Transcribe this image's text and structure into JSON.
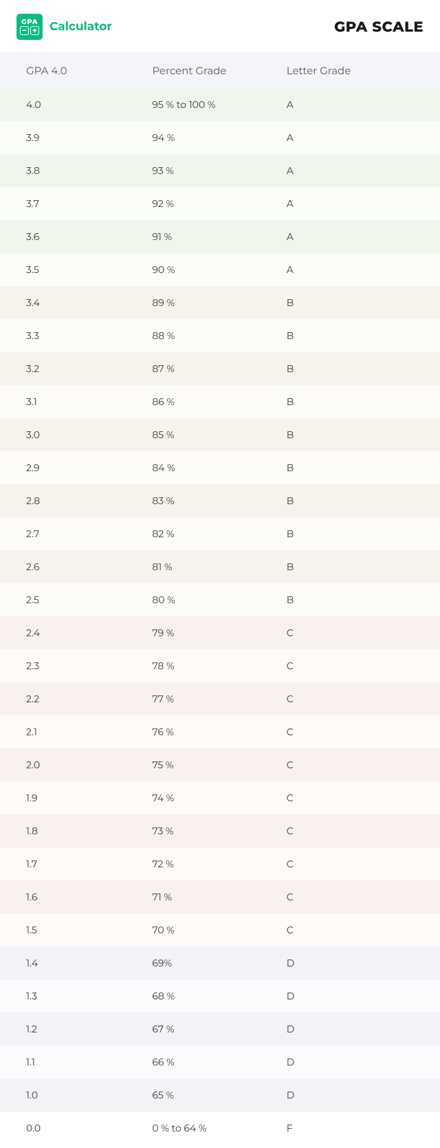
{
  "header": {
    "logo_gpa": "GPA",
    "logo_minus": "−",
    "logo_plus": "+",
    "logo_text": "Calculator",
    "title": "GPA SCALE"
  },
  "table": {
    "columns": [
      "GPA 4.0",
      "Percent Grade",
      "Letter Grade"
    ],
    "header_bg": "#f4f5f9",
    "grade_bands": [
      {
        "letter": "A",
        "tint": "#f1f6ed",
        "base": "#fbfdf9"
      },
      {
        "letter": "B",
        "tint": "#f6f3ed",
        "base": "#fdfcf9"
      },
      {
        "letter": "C",
        "tint": "#f8f1ee",
        "base": "#fefbf9"
      },
      {
        "letter": "D",
        "tint": "#f1f3f6",
        "base": "#f9fbfd"
      },
      {
        "letter": "F",
        "tint": "#ffffff",
        "base": "#ffffff"
      }
    ],
    "rows": [
      {
        "gpa": "4.0",
        "percent": "95 % to 100 %",
        "letter": "A"
      },
      {
        "gpa": "3.9",
        "percent": "94 %",
        "letter": "A"
      },
      {
        "gpa": "3.8",
        "percent": "93 %",
        "letter": "A"
      },
      {
        "gpa": "3.7",
        "percent": "92 %",
        "letter": "A"
      },
      {
        "gpa": "3.6",
        "percent": "91 %",
        "letter": "A"
      },
      {
        "gpa": "3.5",
        "percent": "90 %",
        "letter": "A"
      },
      {
        "gpa": "3.4",
        "percent": "89 %",
        "letter": "B"
      },
      {
        "gpa": "3.3",
        "percent": "88 %",
        "letter": "B"
      },
      {
        "gpa": "3.2",
        "percent": "87 %",
        "letter": "B"
      },
      {
        "gpa": "3.1",
        "percent": "86 %",
        "letter": "B"
      },
      {
        "gpa": "3.0",
        "percent": "85 %",
        "letter": "B"
      },
      {
        "gpa": "2.9",
        "percent": "84 %",
        "letter": "B"
      },
      {
        "gpa": "2.8",
        "percent": "83 %",
        "letter": "B"
      },
      {
        "gpa": "2.7",
        "percent": "82 %",
        "letter": "B"
      },
      {
        "gpa": "2.6",
        "percent": "81 %",
        "letter": "B"
      },
      {
        "gpa": "2.5",
        "percent": "80 %",
        "letter": "B"
      },
      {
        "gpa": "2.4",
        "percent": "79 %",
        "letter": "C"
      },
      {
        "gpa": "2.3",
        "percent": "78 %",
        "letter": "C"
      },
      {
        "gpa": "2.2",
        "percent": "77 %",
        "letter": "C"
      },
      {
        "gpa": "2.1",
        "percent": "76 %",
        "letter": "C"
      },
      {
        "gpa": "2.0",
        "percent": "75 %",
        "letter": "C"
      },
      {
        "gpa": "1.9",
        "percent": "74 %",
        "letter": "C"
      },
      {
        "gpa": "1.8",
        "percent": "73 %",
        "letter": "C"
      },
      {
        "gpa": "1.7",
        "percent": "72 %",
        "letter": "C"
      },
      {
        "gpa": "1.6",
        "percent": "71 %",
        "letter": "C"
      },
      {
        "gpa": "1.5",
        "percent": "70 %",
        "letter": "C"
      },
      {
        "gpa": "1.4",
        "percent": "69%",
        "letter": "D"
      },
      {
        "gpa": "1.3",
        "percent": "68 %",
        "letter": "D"
      },
      {
        "gpa": "1.2",
        "percent": "67 %",
        "letter": "D"
      },
      {
        "gpa": "1.1",
        "percent": "66 %",
        "letter": "D"
      },
      {
        "gpa": "1.0",
        "percent": "65 %",
        "letter": "D"
      },
      {
        "gpa": "0.0",
        "percent": "0 % to 64 %",
        "letter": "F"
      }
    ]
  }
}
